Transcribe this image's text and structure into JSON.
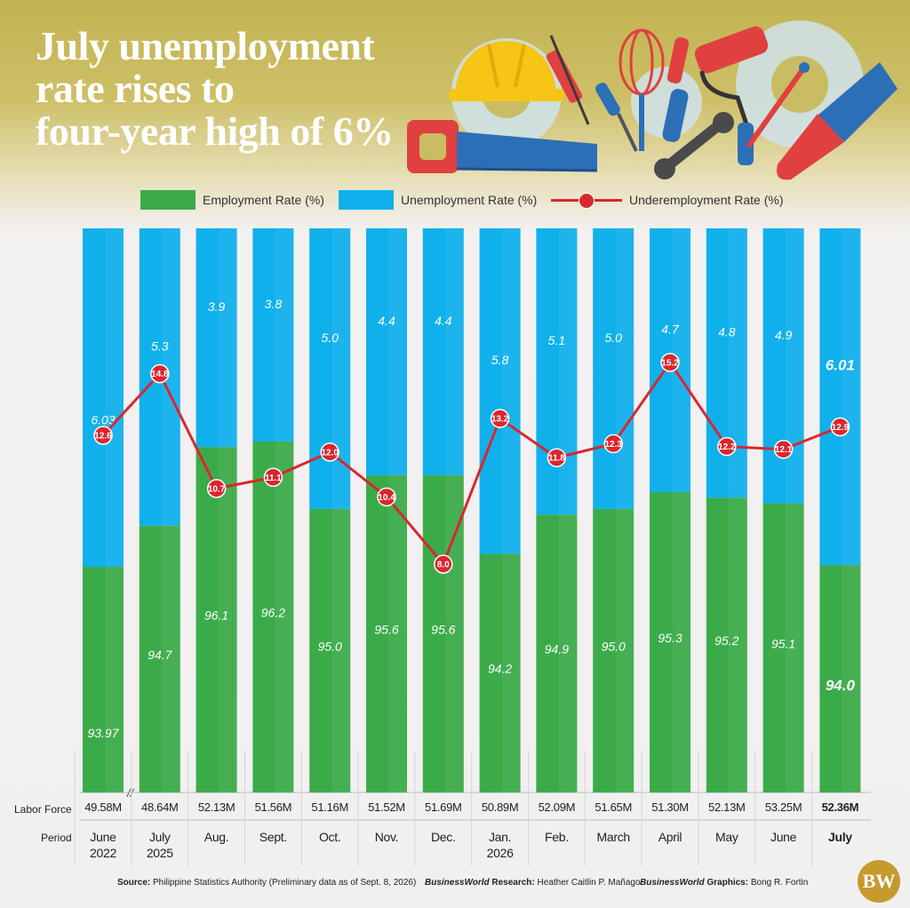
{
  "title": {
    "line1": "July unemployment",
    "line2": "rate rises to",
    "line3": "four-year high of 6%"
  },
  "legend": {
    "employment": "Employment  Rate (%)",
    "unemployment": "Unemployment Rate (%)",
    "underemployment": "Underemployment Rate (%)"
  },
  "row_labels": {
    "labor_force": "Labor Force",
    "period": "Period"
  },
  "colors": {
    "employment": "#3bab49",
    "unemployment": "#0fb0ec",
    "underemployment": "#d9272e"
  },
  "chart_data": {
    "type": "bar",
    "stacked": true,
    "categories": [
      "June 2022",
      "July 2025",
      "Aug.",
      "Sept.",
      "Oct.",
      "Nov.",
      "Dec.",
      "Jan. 2026",
      "Feb.",
      "March",
      "April",
      "May",
      "June",
      "July"
    ],
    "period_lines": [
      [
        "June",
        "2022"
      ],
      [
        "July",
        "2025"
      ],
      [
        "Aug."
      ],
      [
        "Sept."
      ],
      [
        "Oct."
      ],
      [
        "Nov."
      ],
      [
        "Dec."
      ],
      [
        "Jan.",
        "2026"
      ],
      [
        "Feb."
      ],
      [
        "March"
      ],
      [
        "April"
      ],
      [
        "May"
      ],
      [
        "June"
      ],
      [
        "July"
      ]
    ],
    "series": [
      {
        "name": "Employment  Rate (%)",
        "values": [
          93.97,
          94.7,
          96.1,
          96.2,
          95.0,
          95.6,
          95.6,
          94.2,
          94.9,
          95.0,
          95.3,
          95.2,
          95.1,
          94.0
        ],
        "labels": [
          "93.97",
          "94.7",
          "96.1",
          "96.2",
          "95.0",
          "95.6",
          "95.6",
          "94.2",
          "94.9",
          "95.0",
          "95.3",
          "95.2",
          "95.1",
          "94.0"
        ]
      },
      {
        "name": "Unemployment Rate (%)",
        "values": [
          6.03,
          5.3,
          3.9,
          3.8,
          5.0,
          4.4,
          4.4,
          5.8,
          5.1,
          5.0,
          4.7,
          4.8,
          4.9,
          6.01
        ],
        "labels": [
          "6.03",
          "5.3",
          "3.9",
          "3.8",
          "5.0",
          "4.4",
          "4.4",
          "5.8",
          "5.1",
          "5.0",
          "4.7",
          "4.8",
          "4.9",
          "6.01"
        ]
      },
      {
        "name": "Underemployment Rate (%)",
        "type": "line",
        "values": [
          12.6,
          14.8,
          10.7,
          11.1,
          12.0,
          10.4,
          8.0,
          13.2,
          11.8,
          12.3,
          15.2,
          12.2,
          12.1,
          12.9
        ],
        "labels": [
          "12.6",
          "14.8",
          "10.7",
          "11.1",
          "12.0",
          "10.4",
          "8.0",
          "13.2",
          "11.8",
          "12.3",
          "15.2",
          "12.2",
          "12.1",
          "12.9"
        ]
      }
    ],
    "labor_force": [
      "49.58M",
      "48.64M",
      "52.13M",
      "51.56M",
      "51.16M",
      "51.52M",
      "51.69M",
      "50.89M",
      "52.09M",
      "51.65M",
      "51.30M",
      "52.13M",
      "53.25M",
      "52.36M"
    ],
    "highlight_last": true
  },
  "source": {
    "label": "Source:",
    "text": "Philippine Statistics Authority (Preliminary data as of Sept. 8, 2026)",
    "research_brand": "BusinessWorld",
    "research_label": "Research:",
    "research_name": "Heather Caitlin P. Mañago",
    "graphics_brand": "BusinessWorld",
    "graphics_label": "Graphics:",
    "graphics_name": "Bong R. Fortin"
  },
  "logo": "BW"
}
